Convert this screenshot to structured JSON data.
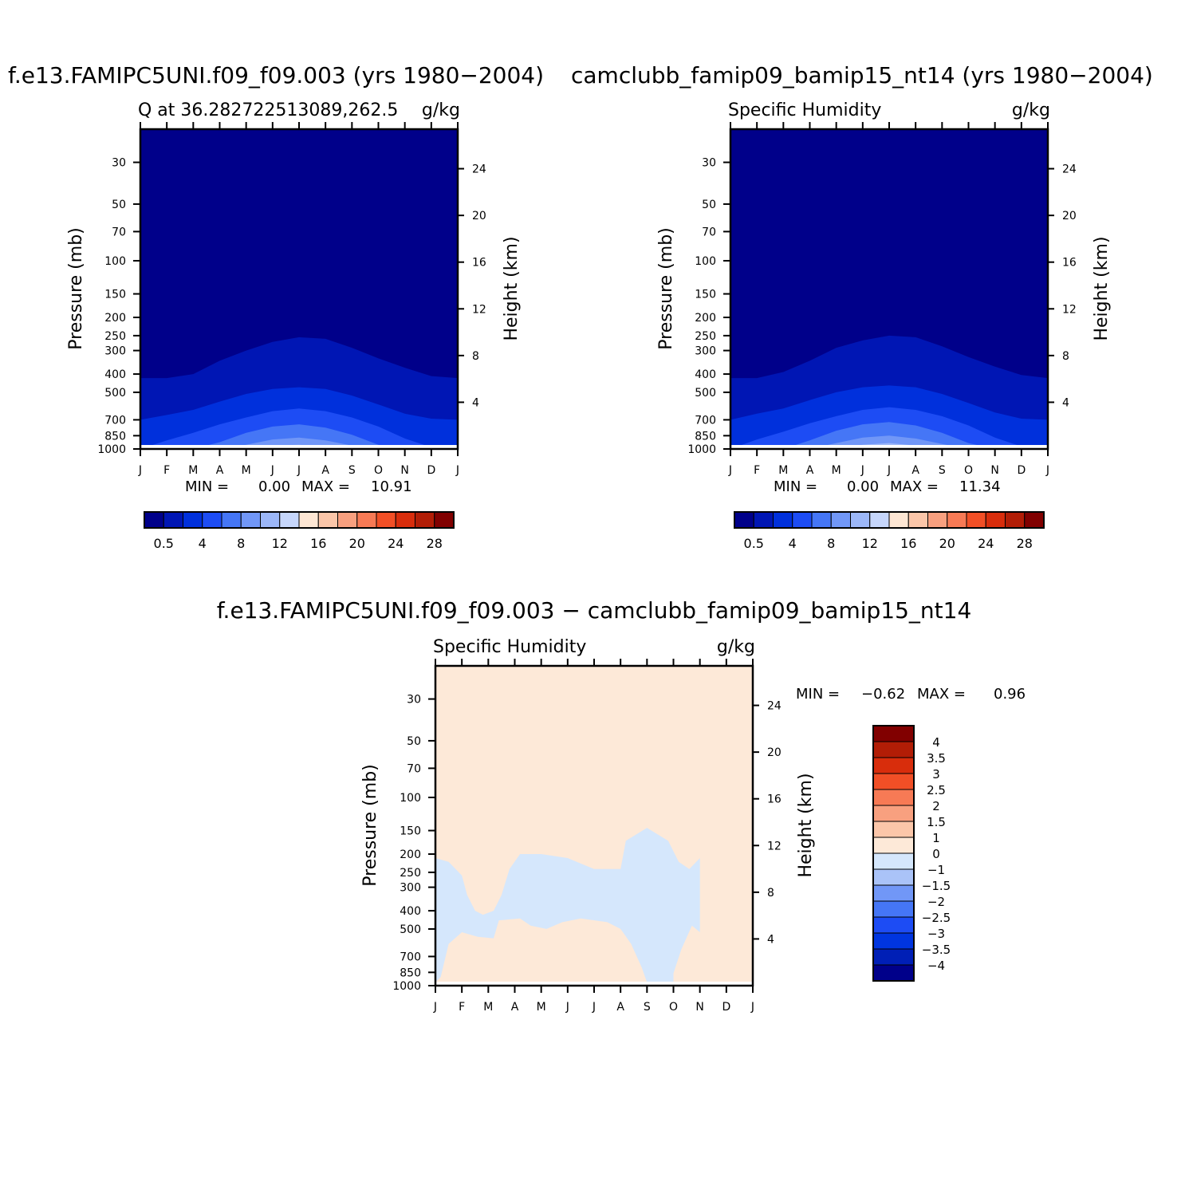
{
  "colors": {
    "scale_abs": [
      "#00008a",
      "#0016b4",
      "#0030dc",
      "#1d4cf4",
      "#4576f6",
      "#7197f7",
      "#9cb7f8",
      "#c6d6fb",
      "#fde6d3",
      "#fbc6a9",
      "#f8a07f",
      "#f77a55",
      "#f14f26",
      "#d82d0c",
      "#b21d06",
      "#810000"
    ],
    "scale_diff": [
      "#00008a",
      "#001fb6",
      "#0035df",
      "#1d4cf4",
      "#4576f6",
      "#7197f7",
      "#aac3f8",
      "#d5e7fc",
      "#fde9d8",
      "#fbc6a9",
      "#f8a07f",
      "#f77a55",
      "#f14f26",
      "#d82d0c",
      "#b21d06",
      "#810000"
    ]
  },
  "chart_data": [
    {
      "type": "contour",
      "id": "panel_1",
      "title": "f.e13.FAMIPC5UNI.f09_f09.003 (yrs 1980−2004)",
      "subtitle_left": "Q at 36.282722513089,262.5",
      "subtitle_right": "g/kg",
      "xlabel": "",
      "ylabel": "Pressure (mb)",
      "ylabel_right": "Height (km)",
      "x_ticks": [
        "J",
        "F",
        "M",
        "A",
        "M",
        "J",
        "J",
        "A",
        "S",
        "O",
        "N",
        "D",
        "J"
      ],
      "y_ticks": [
        30,
        50,
        70,
        100,
        150,
        200,
        250,
        300,
        400,
        500,
        700,
        850,
        1000
      ],
      "y_log": true,
      "ylim": [
        1000,
        20
      ],
      "y_right_ticks": [
        24,
        20,
        16,
        12,
        8,
        4
      ],
      "min_label": "MIN =",
      "min_value": "0.00",
      "max_label": "MAX =",
      "max_value": "10.91",
      "min": 0.0,
      "max": 10.91,
      "colorbar_ticks": [
        "0.5",
        "4",
        "8",
        "12",
        "16",
        "20",
        "24",
        "28"
      ],
      "contour_levels": [
        0.5,
        2,
        4,
        6,
        8,
        10
      ],
      "contour_pressure_by_month": {
        "0.5": [
          420,
          420,
          400,
          340,
          300,
          270,
          255,
          260,
          290,
          330,
          370,
          410,
          420
        ],
        "2": [
          700,
          660,
          620,
          560,
          510,
          480,
          470,
          480,
          520,
          580,
          650,
          690,
          700
        ],
        "4": [
          1000,
          900,
          820,
          740,
          680,
          630,
          610,
          630,
          680,
          760,
          880,
          980,
          1000
        ],
        "6": [
          1000,
          1000,
          1000,
          920,
          820,
          760,
          740,
          770,
          840,
          950,
          1000,
          1000,
          1000
        ],
        "8": [
          1000,
          1000,
          1000,
          1000,
          950,
          890,
          870,
          900,
          960,
          1000,
          1000,
          1000,
          1000
        ],
        "10": [
          1000,
          1000,
          1000,
          1000,
          1000,
          960,
          950,
          980,
          1000,
          1000,
          1000,
          1000,
          1000
        ]
      }
    },
    {
      "type": "contour",
      "id": "panel_2",
      "title": "camclubb_famip09_bamip15_nt14 (yrs 1980−2004)",
      "subtitle_left": "Specific Humidity",
      "subtitle_right": "g/kg",
      "xlabel": "",
      "ylabel": "Pressure (mb)",
      "ylabel_right": "Height (km)",
      "x_ticks": [
        "J",
        "F",
        "M",
        "A",
        "M",
        "J",
        "J",
        "A",
        "S",
        "O",
        "N",
        "D",
        "J"
      ],
      "y_ticks": [
        30,
        50,
        70,
        100,
        150,
        200,
        250,
        300,
        400,
        500,
        700,
        850,
        1000
      ],
      "y_log": true,
      "ylim": [
        1000,
        20
      ],
      "y_right_ticks": [
        24,
        20,
        16,
        12,
        8,
        4
      ],
      "min_label": "MIN =",
      "min_value": "0.00",
      "max_label": "MAX =",
      "max_value": "11.34",
      "min": 0.0,
      "max": 11.34,
      "colorbar_ticks": [
        "0.5",
        "4",
        "8",
        "12",
        "16",
        "20",
        "24",
        "28"
      ],
      "contour_levels": [
        0.5,
        2,
        4,
        6,
        8,
        10
      ],
      "contour_pressure_by_month": {
        "0.5": [
          420,
          420,
          390,
          340,
          290,
          265,
          250,
          255,
          285,
          325,
          365,
          405,
          420
        ],
        "2": [
          700,
          650,
          610,
          550,
          500,
          470,
          460,
          470,
          510,
          570,
          640,
          690,
          700
        ],
        "4": [
          1000,
          890,
          810,
          730,
          670,
          620,
          600,
          620,
          670,
          750,
          870,
          970,
          1000
        ],
        "6": [
          1000,
          1000,
          1000,
          900,
          800,
          740,
          720,
          750,
          820,
          930,
          1000,
          1000,
          1000
        ],
        "8": [
          1000,
          1000,
          1000,
          1000,
          930,
          870,
          850,
          880,
          940,
          1000,
          1000,
          1000,
          1000
        ],
        "10": [
          1000,
          1000,
          1000,
          1000,
          1000,
          950,
          930,
          960,
          1000,
          1000,
          1000,
          1000,
          1000
        ]
      }
    },
    {
      "type": "contour",
      "id": "panel_diff",
      "title": "f.e13.FAMIPC5UNI.f09_f09.003 − camclubb_famip09_bamip15_nt14",
      "subtitle_left": "Specific Humidity",
      "subtitle_right": "g/kg",
      "xlabel": "",
      "ylabel": "Pressure (mb)",
      "ylabel_right": "Height (km)",
      "x_ticks": [
        "J",
        "F",
        "M",
        "A",
        "M",
        "J",
        "J",
        "A",
        "S",
        "O",
        "N",
        "D",
        "J"
      ],
      "y_ticks": [
        30,
        50,
        70,
        100,
        150,
        200,
        250,
        300,
        400,
        500,
        700,
        850,
        1000
      ],
      "y_log": true,
      "ylim": [
        1000,
        20
      ],
      "y_right_ticks": [
        24,
        20,
        16,
        12,
        8,
        4
      ],
      "min_label": "MIN =",
      "min_value": "−0.62",
      "max_label": "MAX =",
      "max_value": "0.96",
      "min": -0.62,
      "max": 0.96,
      "colorbar_ticks": [
        "4",
        "3.5",
        "3",
        "2.5",
        "2",
        "1.5",
        "1",
        "0",
        "−1",
        "−1.5",
        "−2",
        "−2.5",
        "−3",
        "−3.5",
        "−4"
      ],
      "contour_levels": [
        0
      ],
      "negative_region_outline": [
        [
          0,
          210
        ],
        [
          0.5,
          220
        ],
        [
          1.0,
          260
        ],
        [
          1.2,
          330
        ],
        [
          1.5,
          400
        ],
        [
          1.8,
          420
        ],
        [
          2.2,
          400
        ],
        [
          2.5,
          330
        ],
        [
          2.8,
          240
        ],
        [
          3.2,
          200
        ],
        [
          4,
          200
        ],
        [
          5,
          210
        ],
        [
          6,
          240
        ],
        [
          7,
          240
        ],
        [
          7.2,
          170
        ],
        [
          8,
          145
        ],
        [
          8.8,
          170
        ],
        [
          9.2,
          220
        ],
        [
          9.6,
          240
        ],
        [
          10,
          210
        ],
        [
          10,
          520
        ],
        [
          9.7,
          480
        ],
        [
          9.3,
          640
        ],
        [
          9.0,
          860
        ],
        [
          9.0,
          960
        ],
        [
          8.0,
          960
        ],
        [
          7.8,
          800
        ],
        [
          7.4,
          600
        ],
        [
          7.0,
          500
        ],
        [
          6.5,
          460
        ],
        [
          5.5,
          440
        ],
        [
          4.8,
          460
        ],
        [
          4.2,
          500
        ],
        [
          3.6,
          480
        ],
        [
          3.2,
          440
        ],
        [
          2.4,
          450
        ],
        [
          2.2,
          560
        ],
        [
          1.6,
          550
        ],
        [
          1.0,
          520
        ],
        [
          0.5,
          600
        ],
        [
          0.2,
          900
        ],
        [
          0,
          960
        ]
      ]
    }
  ]
}
